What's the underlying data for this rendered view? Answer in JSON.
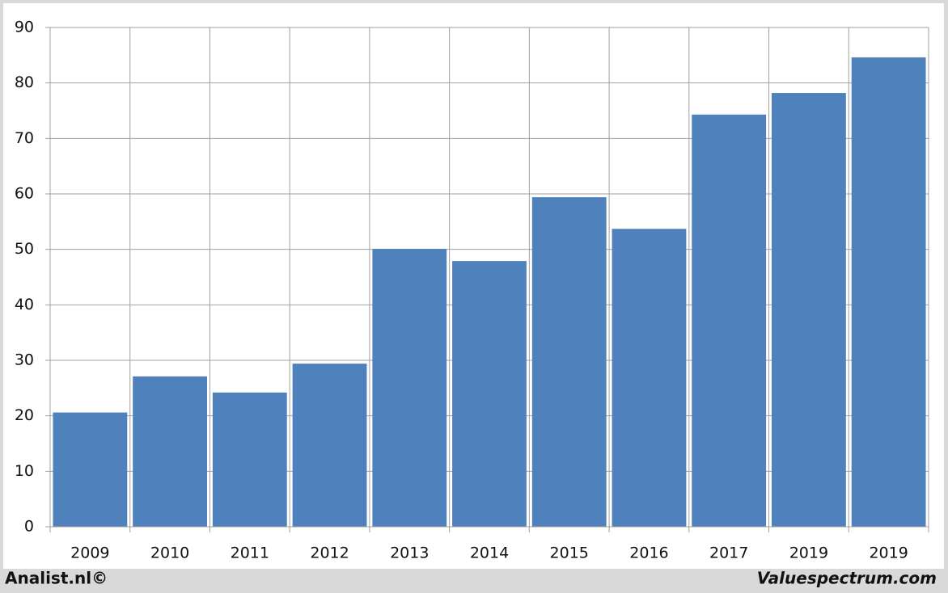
{
  "chart_data": {
    "type": "bar",
    "categories": [
      "2009",
      "2010",
      "2011",
      "2012",
      "2013",
      "2014",
      "2015",
      "2016",
      "2017",
      "2019",
      "2019"
    ],
    "values": [
      20.6,
      27.1,
      24.2,
      29.4,
      50.1,
      47.9,
      59.4,
      53.7,
      74.3,
      78.2,
      84.6
    ],
    "color": "#4f81bd",
    "ylim": [
      0,
      90
    ],
    "yticks": [
      0,
      10,
      20,
      30,
      40,
      50,
      60,
      70,
      80,
      90
    ],
    "grid": true
  },
  "footer": {
    "left": "Analist.nl©",
    "right": "Valuespectrum.com"
  }
}
